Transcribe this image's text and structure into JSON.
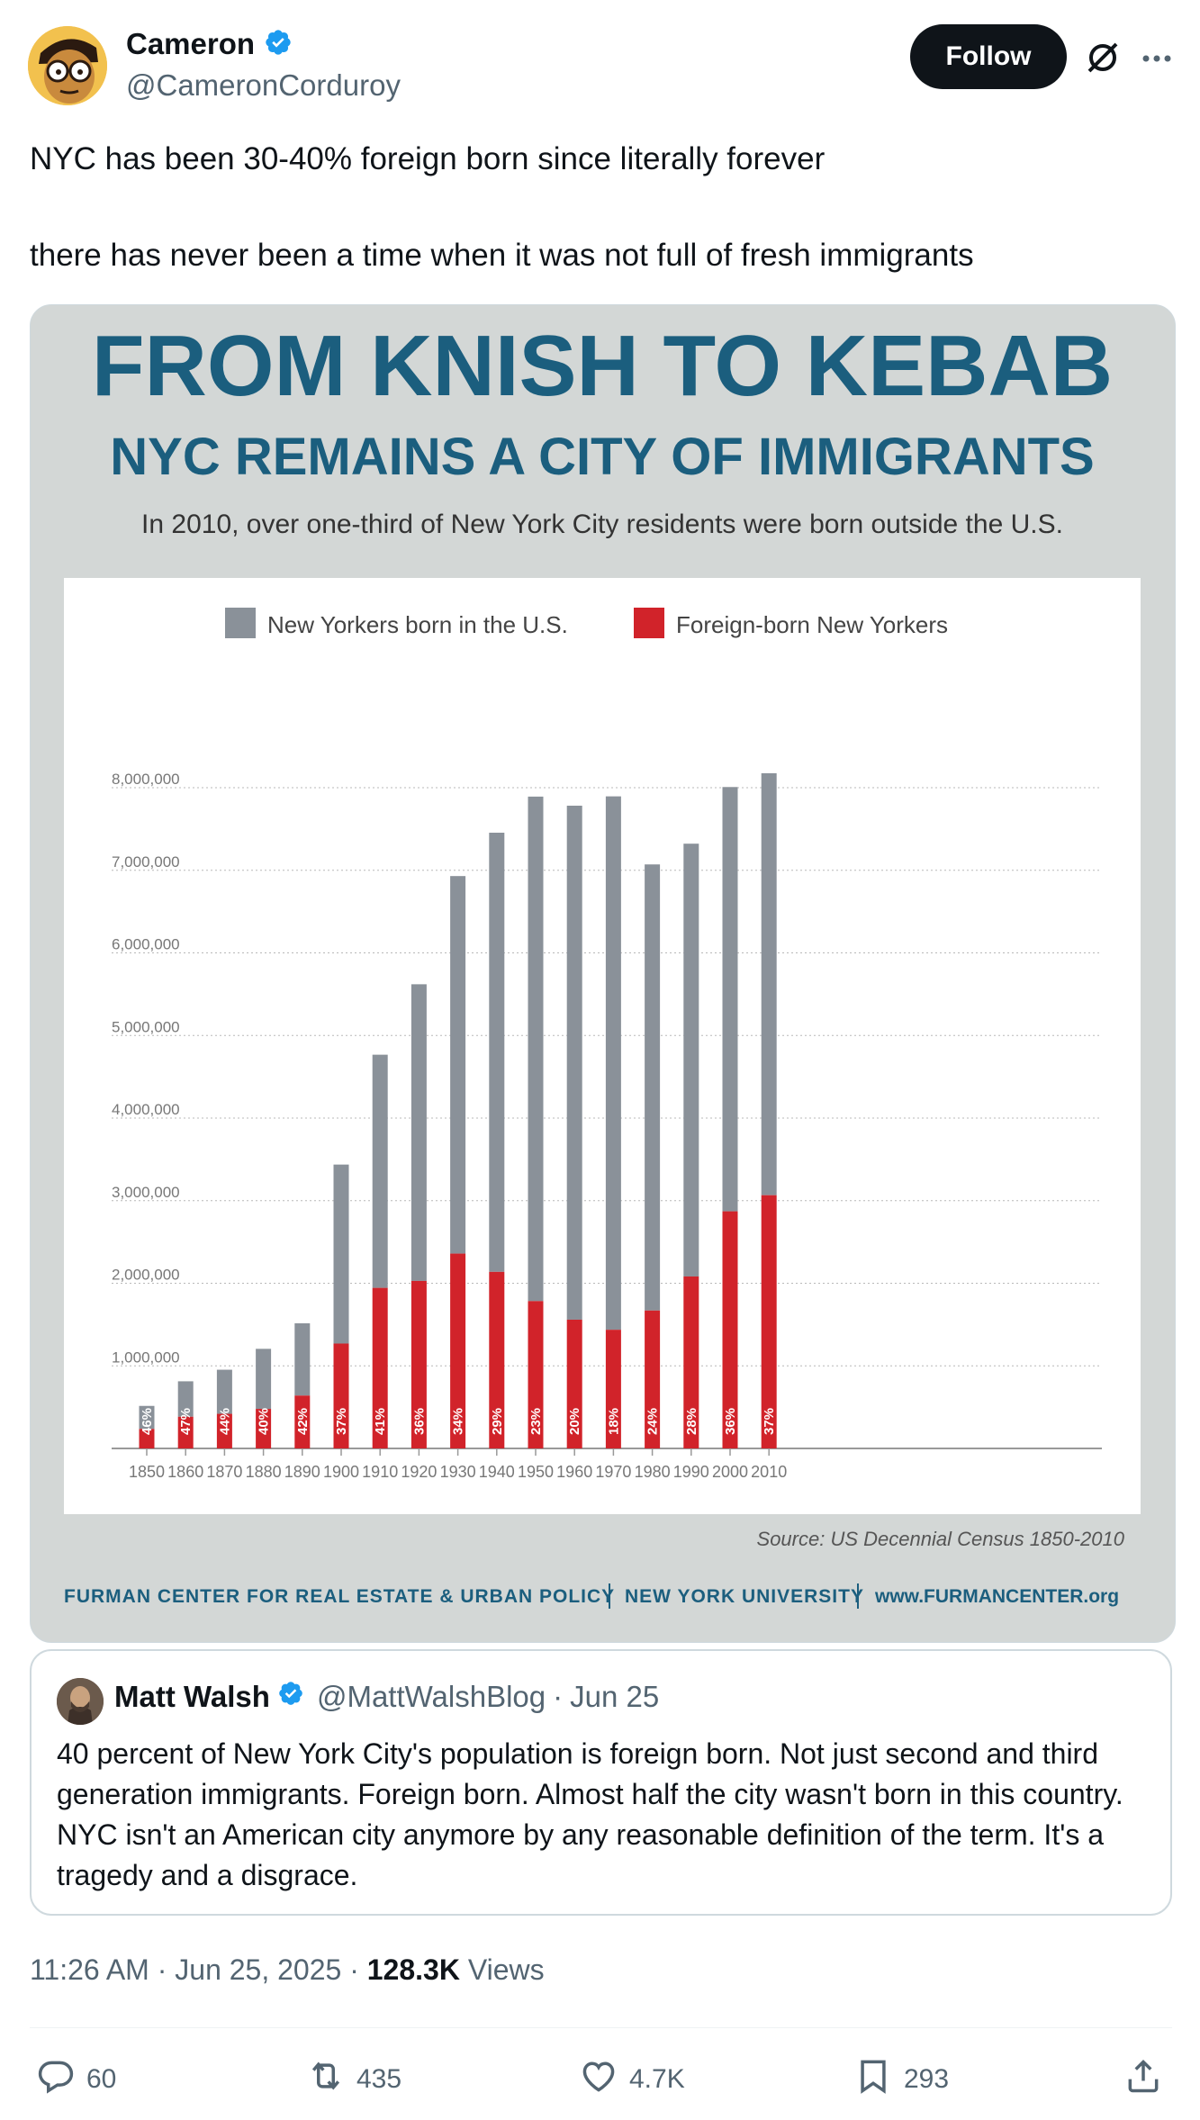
{
  "author": {
    "name": "Cameron",
    "handle": "@CameronCorduroy",
    "verified": true
  },
  "follow_label": "Follow",
  "icons": {
    "grok": "grok-icon",
    "more": "more-icon",
    "verified": "verified-badge-icon",
    "reply": "reply-icon",
    "repost": "repost-icon",
    "like": "like-icon",
    "bookmark": "bookmark-icon",
    "share": "share-icon"
  },
  "tweet": {
    "line1": "NYC has been 30-40% foreign born since literally forever",
    "line2": "there has never been a time when it was not full of fresh immigrants"
  },
  "chart_data": {
    "type": "bar",
    "title": "FROM KNISH TO KEBAB",
    "subtitle": "NYC REMAINS A CITY OF IMMIGRANTS",
    "caption": "In 2010, over one-third of New York City residents were born outside the U.S.",
    "legend": [
      "New Yorkers born in the U.S.",
      "Foreign-born New Yorkers"
    ],
    "colors": {
      "us_born": "#8a9199",
      "foreign_born": "#d1232a",
      "title": "#1b5e7e"
    },
    "categories": [
      "1850",
      "1860",
      "1870",
      "1880",
      "1890",
      "1900",
      "1910",
      "1920",
      "1930",
      "1940",
      "1950",
      "1960",
      "1970",
      "1980",
      "1990",
      "2000",
      "2010"
    ],
    "series": [
      {
        "name": "Foreign-born New Yorkers",
        "values": [
          236000,
          384000,
          419000,
          479000,
          640000,
          1270000,
          1944000,
          2028000,
          2359000,
          2138000,
          1784000,
          1559000,
          1437000,
          1670000,
          2082000,
          2871000,
          3066000
        ]
      },
      {
        "name": "New Yorkers born in the U.S.",
        "values": [
          279000,
          429000,
          534000,
          727000,
          875000,
          2167000,
          2823000,
          3592000,
          4571000,
          5317000,
          6108000,
          6223000,
          6458000,
          5401000,
          5240000,
          5137000,
          5109000
        ]
      }
    ],
    "percent_labels": [
      "46%",
      "47%",
      "44%",
      "40%",
      "42%",
      "37%",
      "41%",
      "36%",
      "34%",
      "29%",
      "23%",
      "20%",
      "18%",
      "24%",
      "28%",
      "36%",
      "37%"
    ],
    "ylim": [
      0,
      8000000
    ],
    "yticks": [
      "1,000,000",
      "2,000,000",
      "3,000,000",
      "4,000,000",
      "5,000,000",
      "6,000,000",
      "7,000,000",
      "8,000,000"
    ],
    "ytick_values": [
      1000000,
      2000000,
      3000000,
      4000000,
      5000000,
      6000000,
      7000000,
      8000000
    ],
    "source": "Source: US Decennial Census 1850-2010",
    "footer": {
      "org": "FURMAN CENTER FOR REAL ESTATE & URBAN POLICY",
      "univ": "NEW YORK UNIVERSITY",
      "url": "www.FURMANCENTER.org"
    }
  },
  "quote": {
    "name": "Matt Walsh",
    "handle": "@MattWalshBlog",
    "separator": "·",
    "date": "Jun 25",
    "text": "40 percent of New York City's population is foreign born.  Not just second and third generation immigrants. Foreign born. Almost half the city wasn't born in this country. NYC isn't an American city anymore by any reasonable definition of the term. It's a tragedy and a disgrace."
  },
  "meta": {
    "time": "11:26 AM · Jun 25, 2025 · ",
    "views_count": "128.3K",
    "views_label": " Views"
  },
  "actions": {
    "replies": "60",
    "reposts": "435",
    "likes": "4.7K",
    "bookmarks": "293"
  }
}
